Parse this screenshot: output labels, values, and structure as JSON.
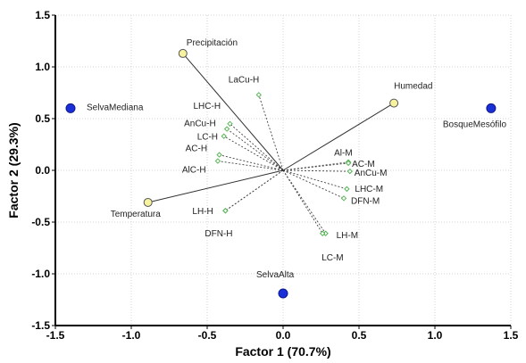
{
  "chart_data": {
    "type": "scatter",
    "xlabel": "Factor 1 (70.7%)",
    "ylabel": "Factor 2 (29.3%)",
    "xlim": [
      -1.5,
      1.5
    ],
    "ylim": [
      -1.5,
      1.5
    ],
    "xticks": [
      "-1.5",
      "-1.0",
      "-0.5",
      "0.0",
      "0.5",
      "1.0",
      "1.5"
    ],
    "yticks": [
      "1.5",
      "1.0",
      "0.5",
      "0.0",
      "-0.5",
      "-1.0",
      "-1.5"
    ],
    "grid": true,
    "colors": {
      "site": "#1a2fd8",
      "environment": "#f6f2a0",
      "variable": "#58b458",
      "vector": "#333333"
    },
    "environment_vectors": [
      {
        "label": "Precipitación",
        "x": -0.66,
        "y": 1.13
      },
      {
        "label": "Humedad",
        "x": 0.73,
        "y": 0.65
      },
      {
        "label": "Temperatura",
        "x": -0.89,
        "y": -0.31
      }
    ],
    "sites": [
      {
        "label": "SelvaMediana",
        "x": -1.4,
        "y": 0.6
      },
      {
        "label": "BosqueMesófilo",
        "x": 1.37,
        "y": 0.6
      },
      {
        "label": "SelvaAlta",
        "x": 0.0,
        "y": -1.19
      }
    ],
    "variables": [
      {
        "label": "LaCu-H",
        "x": -0.16,
        "y": 0.73
      },
      {
        "label": "LHC-H",
        "x": -0.35,
        "y": 0.45
      },
      {
        "label": "AnCu-H",
        "x": -0.37,
        "y": 0.4
      },
      {
        "label": "LC-H",
        "x": -0.39,
        "y": 0.33
      },
      {
        "label": "AC-H",
        "x": -0.42,
        "y": 0.15
      },
      {
        "label": "AlC-H",
        "x": -0.43,
        "y": 0.09
      },
      {
        "label": "LH-H",
        "x": -0.38,
        "y": -0.39
      },
      {
        "label": "DFN-H",
        "x": -0.38,
        "y": -0.39
      },
      {
        "label": "Al-M",
        "x": 0.43,
        "y": 0.08
      },
      {
        "label": "AC-M",
        "x": 0.43,
        "y": 0.07
      },
      {
        "label": "AnCu-M",
        "x": 0.44,
        "y": -0.01
      },
      {
        "label": "LHC-M",
        "x": 0.42,
        "y": -0.18
      },
      {
        "label": "DFN-M",
        "x": 0.4,
        "y": -0.27
      },
      {
        "label": "LH-M",
        "x": 0.28,
        "y": -0.61
      },
      {
        "label": "LC-M",
        "x": 0.26,
        "y": -0.61
      }
    ]
  }
}
